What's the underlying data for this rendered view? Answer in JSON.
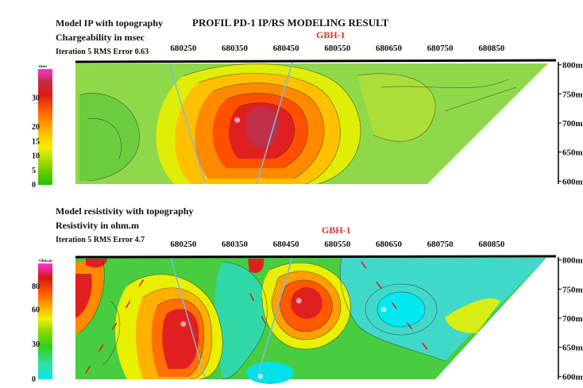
{
  "title": "PROFIL PD-1 IP/RS MODELING RESULT",
  "chart_data": [
    {
      "type": "heatmap",
      "title": "Model IP with topography",
      "subtitle": "Chargeability in msec",
      "iteration_text": "Iteration 5 RMS Error 0.63",
      "colorbar_unit": "msec",
      "colorbar_ticks": [
        "30",
        "20",
        "15",
        "10",
        "5",
        "0"
      ],
      "colorbar_values": [
        30,
        20,
        15,
        10,
        5,
        0
      ],
      "vmin": 0,
      "vmax": 40,
      "x_ticks": [
        "680250",
        "680350",
        "680450",
        "680550",
        "680650",
        "680750",
        "680850"
      ],
      "x_values": [
        680250,
        680350,
        680450,
        680550,
        680650,
        680750,
        680850
      ],
      "xlim": [
        680040,
        680960
      ],
      "y_ticks": [
        "800m",
        "750m",
        "700m",
        "650m",
        "600m"
      ],
      "y_values": [
        800,
        750,
        700,
        650,
        600
      ],
      "ylim": [
        595,
        805
      ],
      "borehole_label": "GBH-1",
      "borehole_x": 680470,
      "anomalies": [
        {
          "x": 680355,
          "elev": 705,
          "value": 37
        }
      ]
    },
    {
      "type": "heatmap",
      "title": "Model resistivity with topography",
      "subtitle": "Resistivity in ohm.m",
      "iteration_text": "Iteration 5 RMS Error 4.7",
      "colorbar_unit": "Ohm.m",
      "colorbar_ticks": [
        "80",
        "60",
        "30",
        "0"
      ],
      "colorbar_values": [
        80,
        60,
        30,
        0
      ],
      "vmin": 0,
      "vmax": 100,
      "x_ticks": [
        "680250",
        "680350",
        "680450",
        "680550",
        "680650",
        "680750",
        "680850"
      ],
      "x_values": [
        680250,
        680350,
        680450,
        680550,
        680650,
        680750,
        680850
      ],
      "xlim": [
        680040,
        680960
      ],
      "y_ticks": [
        "800m",
        "750m",
        "700m",
        "650m",
        "600m"
      ],
      "y_values": [
        800,
        750,
        700,
        650,
        600
      ],
      "ylim": [
        595,
        805
      ],
      "borehole_label": "GBH-1",
      "borehole_x": 680470,
      "anomalies": [
        {
          "x": 680250,
          "elev": 690,
          "value": 95
        },
        {
          "x": 680475,
          "elev": 730,
          "value": 82
        },
        {
          "x": 680640,
          "elev": 715,
          "value": 2
        },
        {
          "x": 680400,
          "elev": 600,
          "value": 4
        }
      ]
    }
  ]
}
